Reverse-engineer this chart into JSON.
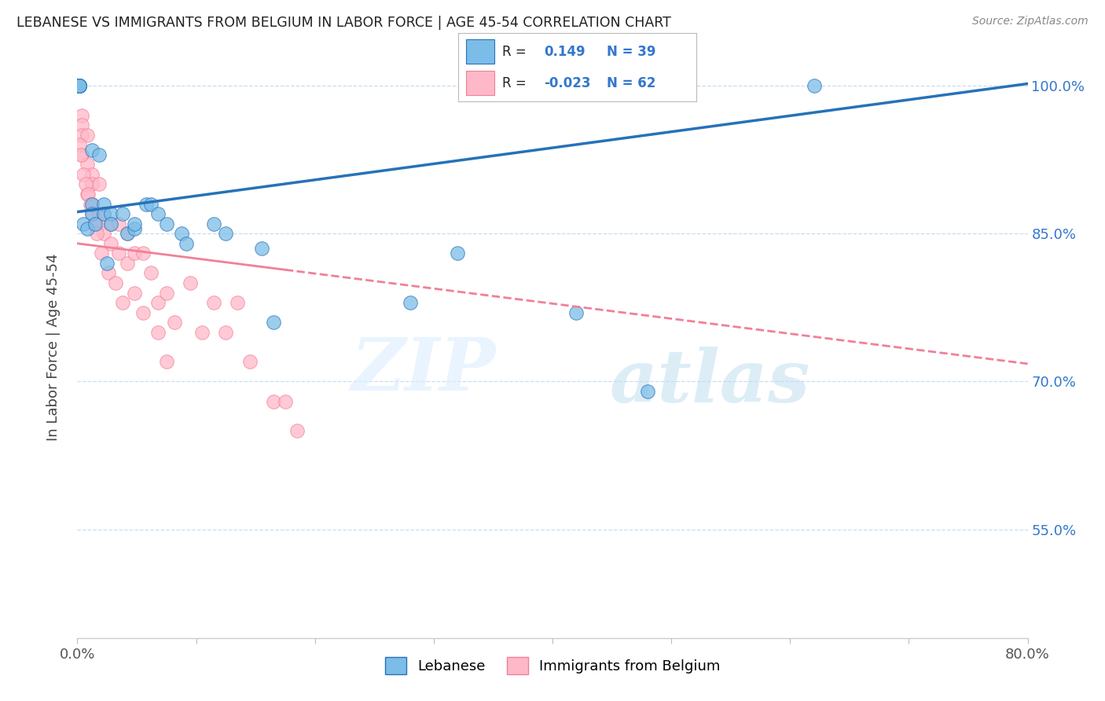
{
  "title": "LEBANESE VS IMMIGRANTS FROM BELGIUM IN LABOR FORCE | AGE 45-54 CORRELATION CHART",
  "source": "Source: ZipAtlas.com",
  "ylabel": "In Labor Force | Age 45-54",
  "r_lebanese": 0.149,
  "n_lebanese": 39,
  "r_belgium": -0.023,
  "n_belgium": 62,
  "xlim": [
    0.0,
    0.8
  ],
  "ylim": [
    0.44,
    1.03
  ],
  "yticks": [
    0.55,
    0.7,
    0.85,
    1.0
  ],
  "ytick_labels": [
    "55.0%",
    "70.0%",
    "85.0%",
    "100.0%"
  ],
  "xticks": [
    0.0,
    0.1,
    0.2,
    0.3,
    0.4,
    0.5,
    0.6,
    0.7,
    0.8
  ],
  "xtick_labels": [
    "0.0%",
    "",
    "",
    "",
    "",
    "",
    "",
    "",
    "80.0%"
  ],
  "color_lebanese": "#7bbde8",
  "color_belgium": "#ffb8c8",
  "color_line_lebanese": "#2672b8",
  "color_line_belgium": "#f08098",
  "watermark_zip": "ZIP",
  "watermark_atlas": "atlas",
  "lebanese_x": [
    0.002,
    0.002,
    0.002,
    0.002,
    0.002,
    0.002,
    0.002,
    0.002,
    0.012,
    0.012,
    0.012,
    0.018,
    0.022,
    0.022,
    0.028,
    0.028,
    0.038,
    0.042,
    0.048,
    0.048,
    0.058,
    0.062,
    0.068,
    0.075,
    0.088,
    0.092,
    0.115,
    0.125,
    0.155,
    0.165,
    0.28,
    0.32,
    0.42,
    0.48,
    0.62,
    0.005,
    0.008,
    0.015,
    0.025
  ],
  "lebanese_y": [
    1.0,
    1.0,
    1.0,
    1.0,
    1.0,
    1.0,
    1.0,
    1.0,
    0.935,
    0.88,
    0.87,
    0.93,
    0.88,
    0.87,
    0.87,
    0.86,
    0.87,
    0.85,
    0.855,
    0.86,
    0.88,
    0.88,
    0.87,
    0.86,
    0.85,
    0.84,
    0.86,
    0.85,
    0.835,
    0.76,
    0.78,
    0.83,
    0.77,
    0.69,
    1.0,
    0.86,
    0.855,
    0.86,
    0.82
  ],
  "belgium_x": [
    0.001,
    0.001,
    0.001,
    0.001,
    0.001,
    0.001,
    0.001,
    0.001,
    0.001,
    0.004,
    0.004,
    0.004,
    0.004,
    0.008,
    0.008,
    0.008,
    0.012,
    0.012,
    0.012,
    0.012,
    0.018,
    0.018,
    0.018,
    0.022,
    0.022,
    0.028,
    0.028,
    0.035,
    0.035,
    0.042,
    0.042,
    0.048,
    0.048,
    0.055,
    0.055,
    0.062,
    0.068,
    0.068,
    0.075,
    0.075,
    0.082,
    0.095,
    0.105,
    0.115,
    0.125,
    0.135,
    0.145,
    0.165,
    0.175,
    0.185,
    0.002,
    0.003,
    0.005,
    0.007,
    0.009,
    0.011,
    0.014,
    0.016,
    0.02,
    0.026,
    0.032,
    0.038
  ],
  "belgium_y": [
    1.0,
    1.0,
    1.0,
    1.0,
    1.0,
    1.0,
    1.0,
    1.0,
    1.0,
    0.97,
    0.96,
    0.95,
    0.93,
    0.95,
    0.92,
    0.89,
    0.91,
    0.9,
    0.88,
    0.87,
    0.9,
    0.87,
    0.86,
    0.87,
    0.85,
    0.86,
    0.84,
    0.86,
    0.83,
    0.85,
    0.82,
    0.83,
    0.79,
    0.83,
    0.77,
    0.81,
    0.78,
    0.75,
    0.79,
    0.72,
    0.76,
    0.8,
    0.75,
    0.78,
    0.75,
    0.78,
    0.72,
    0.68,
    0.68,
    0.65,
    0.94,
    0.93,
    0.91,
    0.9,
    0.89,
    0.88,
    0.86,
    0.85,
    0.83,
    0.81,
    0.8,
    0.78
  ],
  "trend_leb_x0": 0.0,
  "trend_leb_y0": 0.872,
  "trend_leb_x1": 0.8,
  "trend_leb_y1": 1.002,
  "trend_bel_x0": 0.0,
  "trend_bel_y0": 0.84,
  "trend_bel_x1": 0.8,
  "trend_bel_y1": 0.718
}
